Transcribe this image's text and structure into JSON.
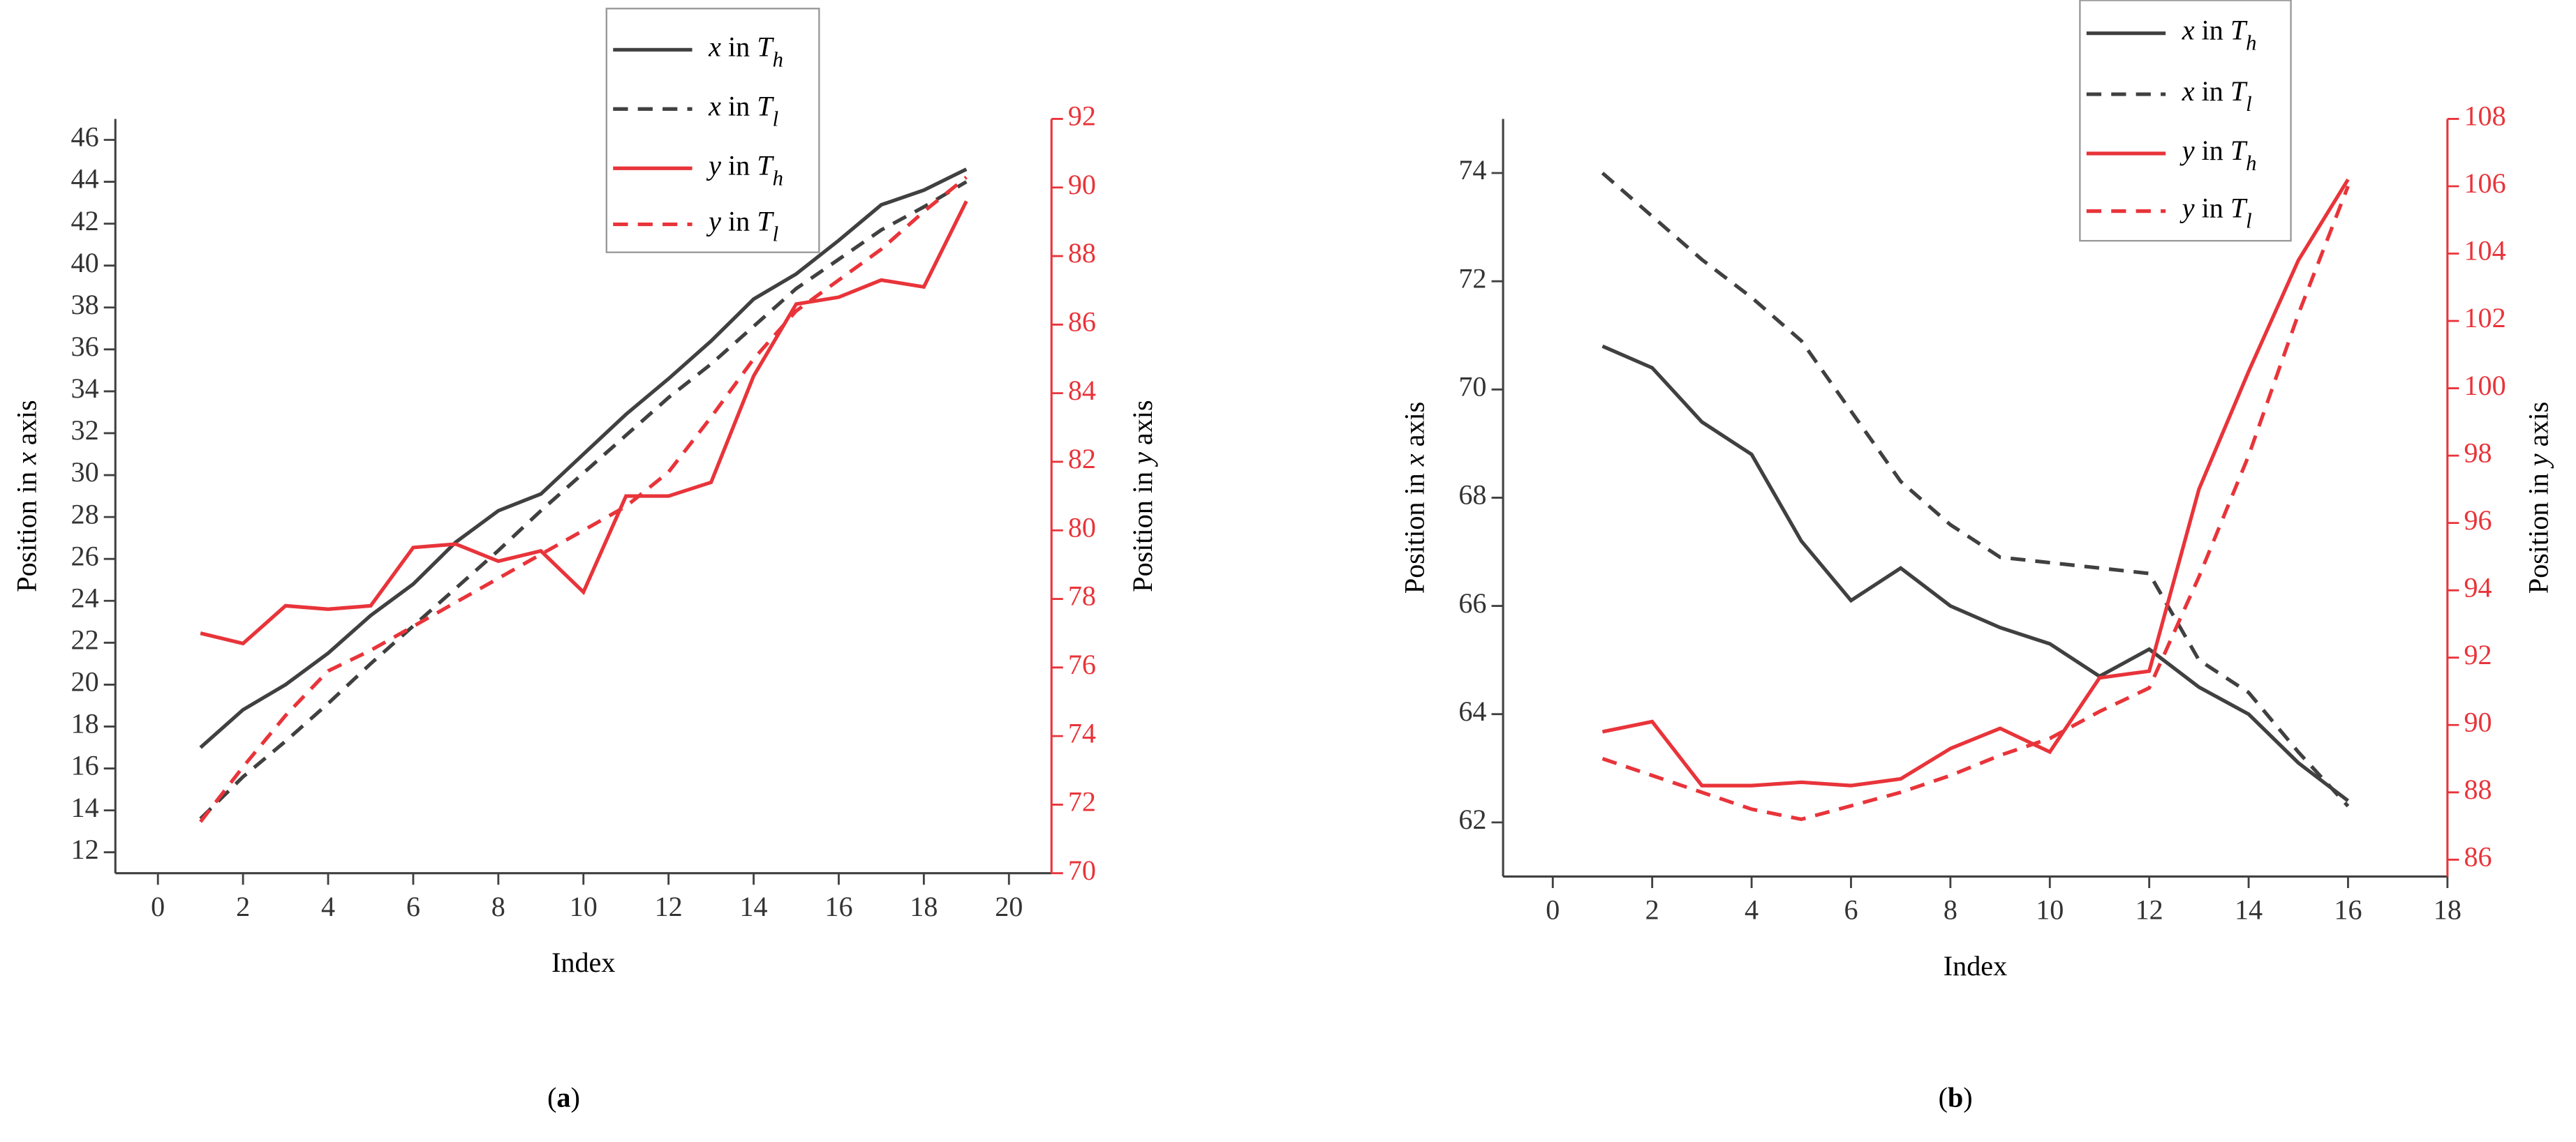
{
  "chart_data": [
    {
      "type": "line",
      "caption": "(a)",
      "xlabel": "Index",
      "ylabel": "Position in x axis",
      "y2label": "Position in y axis",
      "x": [
        1,
        2,
        3,
        4,
        5,
        6,
        7,
        8,
        9,
        10,
        11,
        12,
        13,
        14,
        15,
        16,
        17,
        18,
        19
      ],
      "xlim": [
        -1,
        21
      ],
      "xticks": [
        0,
        2,
        4,
        6,
        8,
        10,
        12,
        14,
        16,
        18,
        20
      ],
      "ylim": [
        11,
        47
      ],
      "yticks": [
        12,
        14,
        16,
        18,
        20,
        22,
        24,
        26,
        28,
        30,
        32,
        34,
        36,
        38,
        40,
        42,
        44,
        46
      ],
      "y2lim": [
        70,
        92
      ],
      "y2ticks": [
        70,
        72,
        74,
        76,
        78,
        80,
        82,
        84,
        86,
        88,
        90,
        92
      ],
      "y2color": "#e8343a",
      "series": [
        {
          "name": "x in Th",
          "color": "#404040",
          "linestyle": "solid",
          "values": [
            17.0,
            18.8,
            20.0,
            21.5,
            23.3,
            24.8,
            26.8,
            28.3,
            29.1,
            31.0,
            32.9,
            34.6,
            36.4,
            38.4,
            39.6,
            41.2,
            42.9,
            43.6,
            44.6
          ]
        },
        {
          "name": "x in Tl",
          "color": "#404040",
          "linestyle": "dashed",
          "values": [
            13.6,
            15.6,
            17.3,
            19.1,
            21.0,
            22.8,
            24.6,
            26.4,
            28.3,
            30.1,
            31.9,
            33.7,
            35.3,
            37.1,
            38.9,
            40.3,
            41.7,
            42.8,
            44.0
          ]
        },
        {
          "name": "y in Th",
          "color": "#e8343a",
          "linestyle": "solid",
          "axis": "y2",
          "values": [
            77.0,
            76.7,
            77.8,
            77.7,
            77.8,
            79.5,
            79.6,
            79.1,
            79.4,
            78.2,
            81.0,
            81.0,
            81.4,
            84.5,
            86.6,
            86.8,
            87.3,
            87.1,
            89.6
          ]
        },
        {
          "name": "y in Tl",
          "color": "#e8343a",
          "linestyle": "dashed",
          "axis": "y2",
          "values": [
            71.5,
            73.1,
            74.6,
            75.9,
            76.5,
            77.2,
            77.9,
            78.6,
            79.3,
            80.0,
            80.7,
            81.7,
            83.3,
            85.0,
            86.4,
            87.3,
            88.2,
            89.3,
            90.3
          ]
        }
      ]
    },
    {
      "type": "line",
      "caption": "(b)",
      "xlabel": "Index",
      "ylabel": "Position in x axis",
      "y2label": "Position in y axis",
      "x": [
        1,
        2,
        3,
        4,
        5,
        6,
        7,
        8,
        9,
        10,
        11,
        12,
        13,
        14,
        15,
        16
      ],
      "xlim": [
        -1,
        18
      ],
      "xticks": [
        0,
        2,
        4,
        6,
        8,
        10,
        12,
        14,
        16,
        18
      ],
      "ylim": [
        61,
        75
      ],
      "yticks": [
        62,
        64,
        66,
        68,
        70,
        72,
        74
      ],
      "y2lim": [
        85.5,
        108
      ],
      "y2ticks": [
        86,
        88,
        90,
        92,
        94,
        96,
        98,
        100,
        102,
        104,
        106,
        108
      ],
      "y2color": "#e8343a",
      "series": [
        {
          "name": "x in Th",
          "color": "#404040",
          "linestyle": "solid",
          "values": [
            70.8,
            70.4,
            69.4,
            68.8,
            67.2,
            66.1,
            66.7,
            66.0,
            65.6,
            65.3,
            64.7,
            65.2,
            64.5,
            64.0,
            63.1,
            62.4
          ]
        },
        {
          "name": "x in Tl",
          "color": "#404040",
          "linestyle": "dashed",
          "values": [
            74.0,
            73.2,
            72.4,
            71.7,
            70.9,
            69.6,
            68.3,
            67.5,
            66.9,
            66.8,
            66.7,
            66.6,
            65.0,
            64.4,
            63.3,
            62.3
          ]
        },
        {
          "name": "y in Th",
          "color": "#e8343a",
          "linestyle": "solid",
          "axis": "y2",
          "values": [
            89.8,
            90.1,
            88.2,
            88.2,
            88.3,
            88.2,
            88.4,
            89.3,
            89.9,
            89.2,
            91.4,
            91.6,
            97.0,
            100.5,
            103.8,
            106.2
          ]
        },
        {
          "name": "y in Tl",
          "color": "#e8343a",
          "linestyle": "dashed",
          "axis": "y2",
          "values": [
            89.0,
            88.5,
            88.0,
            87.5,
            87.2,
            87.6,
            88.0,
            88.5,
            89.1,
            89.6,
            90.4,
            91.1,
            94.4,
            98.0,
            102.2,
            106.0
          ]
        }
      ]
    }
  ]
}
